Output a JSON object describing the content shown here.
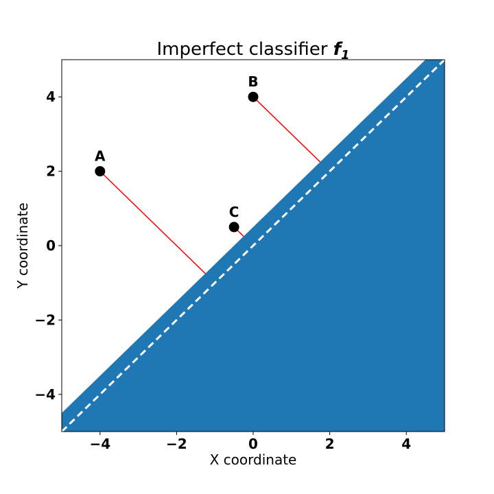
{
  "chart_data": {
    "type": "scatter",
    "title": "Imperfect classifier ",
    "title_symbol": "f",
    "title_subscript": "1",
    "xlabel": "X coordinate",
    "ylabel": "Y coordinate",
    "xlim": [
      -5,
      5
    ],
    "ylim": [
      -5,
      5
    ],
    "grid": false,
    "xticks": [
      -4,
      -2,
      0,
      2,
      4
    ],
    "xtick_labels": [
      "−4",
      "−2",
      "0",
      "2",
      "4"
    ],
    "yticks": [
      -4,
      -2,
      0,
      2,
      4
    ],
    "ytick_labels": [
      "−4",
      "−2",
      "0",
      "2",
      "4"
    ],
    "decision_boundary": {
      "slope": 1,
      "intercept": 0,
      "style": "dashed",
      "color": "#ffffff"
    },
    "shifted_boundary": {
      "slope": 1,
      "intercept": 0.5
    },
    "region_color": "#1f77b4",
    "distance_line_color": "#ff0000",
    "point_color": "#000000",
    "points": [
      {
        "label": "A",
        "x": -4,
        "y": 2
      },
      {
        "label": "B",
        "x": 0,
        "y": 4
      },
      {
        "label": "C",
        "x": -0.5,
        "y": 0.5
      }
    ]
  }
}
